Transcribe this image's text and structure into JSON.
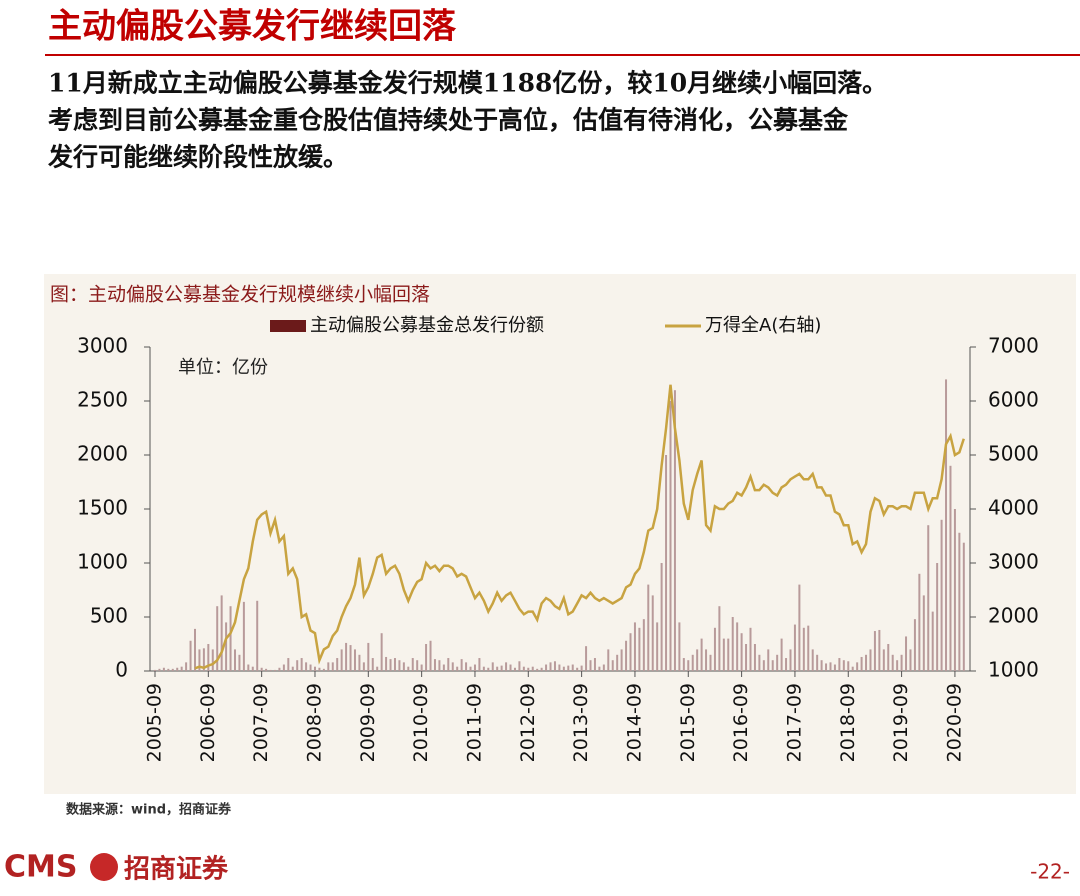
{
  "slide": {
    "title": "主动偏股公募发行继续回落",
    "body": [
      "11月新成立主动偏股公募基金发行规模1188亿份，较10月继续小幅回落。",
      "考虑到目前公募基金重仓股估值持续处于高位，估值有待消化，公募基金",
      "发行可能继续阶段性放缓。"
    ],
    "source": "数据来源：wind，招商证券",
    "logo": "CMS",
    "logo_cn": "招商证券",
    "page": "-22-"
  },
  "chart_data": {
    "type": "combo",
    "title": "图：主动偏股公募基金发行规模继续小幅回落",
    "annotation": "单位：亿份",
    "x": [
      "2005-09",
      "2005-10",
      "2005-11",
      "2005-12",
      "2006-01",
      "2006-02",
      "2006-03",
      "2006-04",
      "2006-05",
      "2006-06",
      "2006-07",
      "2006-08",
      "2006-09",
      "2006-10",
      "2006-11",
      "2006-12",
      "2007-01",
      "2007-02",
      "2007-03",
      "2007-04",
      "2007-05",
      "2007-06",
      "2007-07",
      "2007-08",
      "2007-09",
      "2007-10",
      "2007-11",
      "2007-12",
      "2008-01",
      "2008-02",
      "2008-03",
      "2008-04",
      "2008-05",
      "2008-06",
      "2008-07",
      "2008-08",
      "2008-09",
      "2008-10",
      "2008-11",
      "2008-12",
      "2009-01",
      "2009-02",
      "2009-03",
      "2009-04",
      "2009-05",
      "2009-06",
      "2009-07",
      "2009-08",
      "2009-09",
      "2009-10",
      "2009-11",
      "2009-12",
      "2010-01",
      "2010-02",
      "2010-03",
      "2010-04",
      "2010-05",
      "2010-06",
      "2010-07",
      "2010-08",
      "2010-09",
      "2010-10",
      "2010-11",
      "2010-12",
      "2011-01",
      "2011-02",
      "2011-03",
      "2011-04",
      "2011-05",
      "2011-06",
      "2011-07",
      "2011-08",
      "2011-09",
      "2011-10",
      "2011-11",
      "2011-12",
      "2012-01",
      "2012-02",
      "2012-03",
      "2012-04",
      "2012-05",
      "2012-06",
      "2012-07",
      "2012-08",
      "2012-09",
      "2012-10",
      "2012-11",
      "2012-12",
      "2013-01",
      "2013-02",
      "2013-03",
      "2013-04",
      "2013-05",
      "2013-06",
      "2013-07",
      "2013-08",
      "2013-09",
      "2013-10",
      "2013-11",
      "2013-12",
      "2014-01",
      "2014-02",
      "2014-03",
      "2014-04",
      "2014-05",
      "2014-06",
      "2014-07",
      "2014-08",
      "2014-09",
      "2014-10",
      "2014-11",
      "2014-12",
      "2015-01",
      "2015-02",
      "2015-03",
      "2015-04",
      "2015-05",
      "2015-06",
      "2015-07",
      "2015-08",
      "2015-09",
      "2015-10",
      "2015-11",
      "2015-12",
      "2016-01",
      "2016-02",
      "2016-03",
      "2016-04",
      "2016-05",
      "2016-06",
      "2016-07",
      "2016-08",
      "2016-09",
      "2016-10",
      "2016-11",
      "2016-12",
      "2017-01",
      "2017-02",
      "2017-03",
      "2017-04",
      "2017-05",
      "2017-06",
      "2017-07",
      "2017-08",
      "2017-09",
      "2017-10",
      "2017-11",
      "2017-12",
      "2018-01",
      "2018-02",
      "2018-03",
      "2018-04",
      "2018-05",
      "2018-06",
      "2018-07",
      "2018-08",
      "2018-09",
      "2018-10",
      "2018-11",
      "2018-12",
      "2019-01",
      "2019-02",
      "2019-03",
      "2019-04",
      "2019-05",
      "2019-06",
      "2019-07",
      "2019-08",
      "2019-09",
      "2019-10",
      "2019-11",
      "2019-12",
      "2020-01",
      "2020-02",
      "2020-03",
      "2020-04",
      "2020-05",
      "2020-06",
      "2020-07",
      "2020-08",
      "2020-09",
      "2020-10",
      "2020-11"
    ],
    "xticks": [
      "2005-09",
      "2006-09",
      "2007-09",
      "2008-09",
      "2009-09",
      "2010-09",
      "2011-09",
      "2012-09",
      "2013-09",
      "2014-09",
      "2015-09",
      "2016-09",
      "2017-09",
      "2018-09",
      "2019-09",
      "2020-09"
    ],
    "ylim": [
      0,
      3000
    ],
    "yticks": [
      0,
      500,
      1000,
      1500,
      2000,
      2500,
      3000
    ],
    "y2lim": [
      1000,
      7000
    ],
    "y2ticks": [
      1000,
      2000,
      3000,
      4000,
      5000,
      6000,
      7000
    ],
    "series": [
      {
        "name": "主动偏股公募基金总发行份额",
        "type": "bar",
        "color": "#b89a9a",
        "legend_color": "#6b1a1a",
        "values": [
          10,
          20,
          30,
          20,
          20,
          30,
          40,
          80,
          280,
          390,
          200,
          210,
          250,
          200,
          600,
          700,
          450,
          600,
          200,
          150,
          640,
          60,
          40,
          650,
          30,
          20,
          10,
          10,
          30,
          60,
          120,
          40,
          100,
          120,
          80,
          60,
          40,
          30,
          20,
          80,
          80,
          120,
          200,
          260,
          240,
          200,
          150,
          80,
          260,
          120,
          40,
          350,
          130,
          110,
          120,
          100,
          80,
          40,
          120,
          100,
          60,
          250,
          280,
          110,
          100,
          60,
          120,
          80,
          40,
          110,
          80,
          40,
          60,
          120,
          40,
          30,
          80,
          40,
          50,
          80,
          60,
          30,
          90,
          40,
          30,
          40,
          20,
          30,
          60,
          80,
          90,
          60,
          40,
          50,
          60,
          30,
          50,
          230,
          100,
          120,
          40,
          60,
          200,
          100,
          150,
          200,
          280,
          350,
          450,
          400,
          480,
          800,
          700,
          450,
          1000,
          2000,
          2500,
          2600,
          450,
          120,
          100,
          150,
          200,
          300,
          200,
          150,
          400,
          600,
          300,
          300,
          500,
          450,
          350,
          250,
          400,
          250,
          150,
          100,
          200,
          100,
          150,
          300,
          120,
          200,
          430,
          800,
          400,
          420,
          200,
          150,
          100,
          70,
          80,
          60,
          120,
          100,
          90,
          40,
          80,
          130,
          150,
          200,
          370,
          380,
          200,
          250,
          150,
          100,
          150,
          320,
          200,
          480,
          900,
          700,
          1350,
          550,
          1000,
          1400,
          2700,
          1900,
          1500,
          1280,
          1188
        ]
      },
      {
        "name": "万得全A(右轴)",
        "type": "line",
        "axis": "y2",
        "color": "#c8a341",
        "values": [
          null,
          null,
          null,
          null,
          null,
          null,
          null,
          null,
          null,
          1050,
          1080,
          1060,
          1100,
          1130,
          1200,
          1350,
          1600,
          1700,
          1900,
          2300,
          2700,
          2900,
          3400,
          3800,
          3900,
          3950,
          3550,
          3800,
          3400,
          3500,
          2800,
          2900,
          2700,
          2000,
          2050,
          1750,
          1700,
          1200,
          1400,
          1450,
          1650,
          1750,
          2000,
          2200,
          2350,
          2600,
          3100,
          2400,
          2550,
          2800,
          3100,
          3150,
          2800,
          2900,
          2950,
          2800,
          2500,
          2300,
          2500,
          2650,
          2700,
          3000,
          2900,
          2950,
          2850,
          2950,
          2950,
          2900,
          2750,
          2800,
          2750,
          2550,
          2350,
          2450,
          2300,
          2100,
          2250,
          2450,
          2300,
          2400,
          2450,
          2300,
          2150,
          2050,
          2100,
          2100,
          1950,
          2250,
          2350,
          2300,
          2200,
          2150,
          2350,
          2050,
          2100,
          2250,
          2400,
          2350,
          2450,
          2350,
          2300,
          2350,
          2300,
          2250,
          2300,
          2350,
          2550,
          2600,
          2800,
          2900,
          3200,
          3600,
          3650,
          4000,
          4800,
          5500,
          6300,
          5500,
          4900,
          4100,
          3800,
          4350,
          4650,
          4900,
          3700,
          3600,
          4050,
          4000,
          4000,
          4100,
          4150,
          4300,
          4250,
          4400,
          4600,
          4350,
          4350,
          4450,
          4400,
          4300,
          4250,
          4400,
          4450,
          4550,
          4600,
          4650,
          4550,
          4550,
          4650,
          4400,
          4400,
          4250,
          4250,
          3950,
          3900,
          3700,
          3700,
          3350,
          3400,
          3200,
          3350,
          3950,
          4200,
          4150,
          3900,
          4050,
          4050,
          4000,
          4050,
          4050,
          4000,
          4300,
          4300,
          4300,
          4000,
          4200,
          4200,
          4550,
          5200,
          5350,
          5000,
          5050,
          5300
        ]
      }
    ]
  }
}
